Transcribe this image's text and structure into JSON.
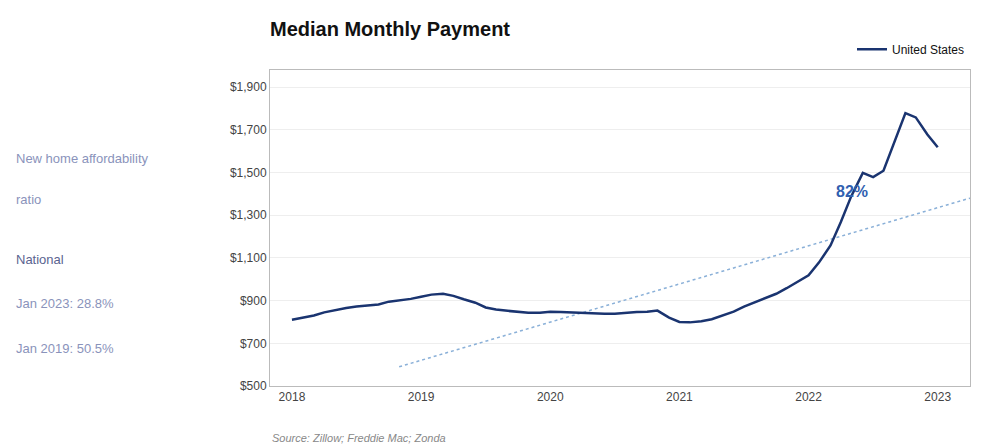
{
  "chart_data": {
    "type": "line",
    "title": "Median Monthly Payment",
    "source": "Source: Zillow; Freddie Mac; Zonda",
    "series": [
      {
        "name": "United States",
        "color": "#1a3470",
        "x": [
          2018.0,
          2018.08,
          2018.17,
          2018.25,
          2018.33,
          2018.42,
          2018.5,
          2018.58,
          2018.67,
          2018.75,
          2018.83,
          2018.92,
          2019.0,
          2019.08,
          2019.17,
          2019.25,
          2019.33,
          2019.42,
          2019.5,
          2019.58,
          2019.67,
          2019.75,
          2019.83,
          2019.92,
          2020.0,
          2020.08,
          2020.17,
          2020.25,
          2020.33,
          2020.42,
          2020.5,
          2020.58,
          2020.67,
          2020.75,
          2020.83,
          2020.92,
          2021.0,
          2021.08,
          2021.17,
          2021.25,
          2021.33,
          2021.42,
          2021.5,
          2021.58,
          2021.67,
          2021.75,
          2021.83,
          2021.92,
          2022.0,
          2022.08,
          2022.17,
          2022.25,
          2022.33,
          2022.42,
          2022.5,
          2022.58,
          2022.67,
          2022.75,
          2022.83,
          2022.92,
          2023.0
        ],
        "values": [
          810,
          820,
          830,
          845,
          855,
          865,
          872,
          878,
          882,
          895,
          900,
          908,
          918,
          928,
          932,
          922,
          906,
          890,
          868,
          858,
          852,
          848,
          843,
          843,
          848,
          846,
          844,
          842,
          838,
          838,
          838,
          843,
          846,
          848,
          853,
          820,
          800,
          798,
          803,
          813,
          828,
          848,
          872,
          892,
          912,
          932,
          958,
          988,
          1018,
          1078,
          1158,
          1268,
          1388,
          1498,
          1478,
          1508,
          1648,
          1778,
          1758,
          1678,
          1618
        ]
      },
      {
        "color": "#8ab0d8",
        "line_style": "dotted",
        "x": [
          2018.83,
          2023.25
        ],
        "values": [
          590,
          1380
        ]
      }
    ],
    "xlim": [
      2017.83,
      2023.25
    ],
    "xticks": [
      2018,
      2019,
      2020,
      2021,
      2022,
      2023
    ],
    "ylim": [
      500,
      1980
    ],
    "yticks": [
      {
        "value": 500,
        "label": "$500"
      },
      {
        "value": 700,
        "label": "$700"
      },
      {
        "value": 900,
        "label": "$900"
      },
      {
        "value": 1100,
        "label": "$1,100"
      },
      {
        "value": 1300,
        "label": "$1,300"
      },
      {
        "value": 1500,
        "label": "$1,500"
      },
      {
        "value": 1700,
        "label": "$1,700"
      },
      {
        "value": 1900,
        "label": "$1,900"
      }
    ],
    "grid": "y",
    "legend": "upper right",
    "annotations": [
      {
        "text": "82%",
        "x": 2022.2,
        "y": 1360,
        "color": "#3060b0"
      }
    ],
    "sidebar": [
      {
        "text": "New home affordability",
        "color": "#8a93bb"
      },
      {
        "text": "ratio",
        "color": "#8a93bb"
      },
      {
        "text": "National",
        "color": "#5a6490"
      },
      {
        "text": "Jan 2023: 28.8%",
        "color": "#8a93bb"
      },
      {
        "text": "Jan 2019: 50.5%",
        "color": "#8a93bb"
      }
    ]
  }
}
